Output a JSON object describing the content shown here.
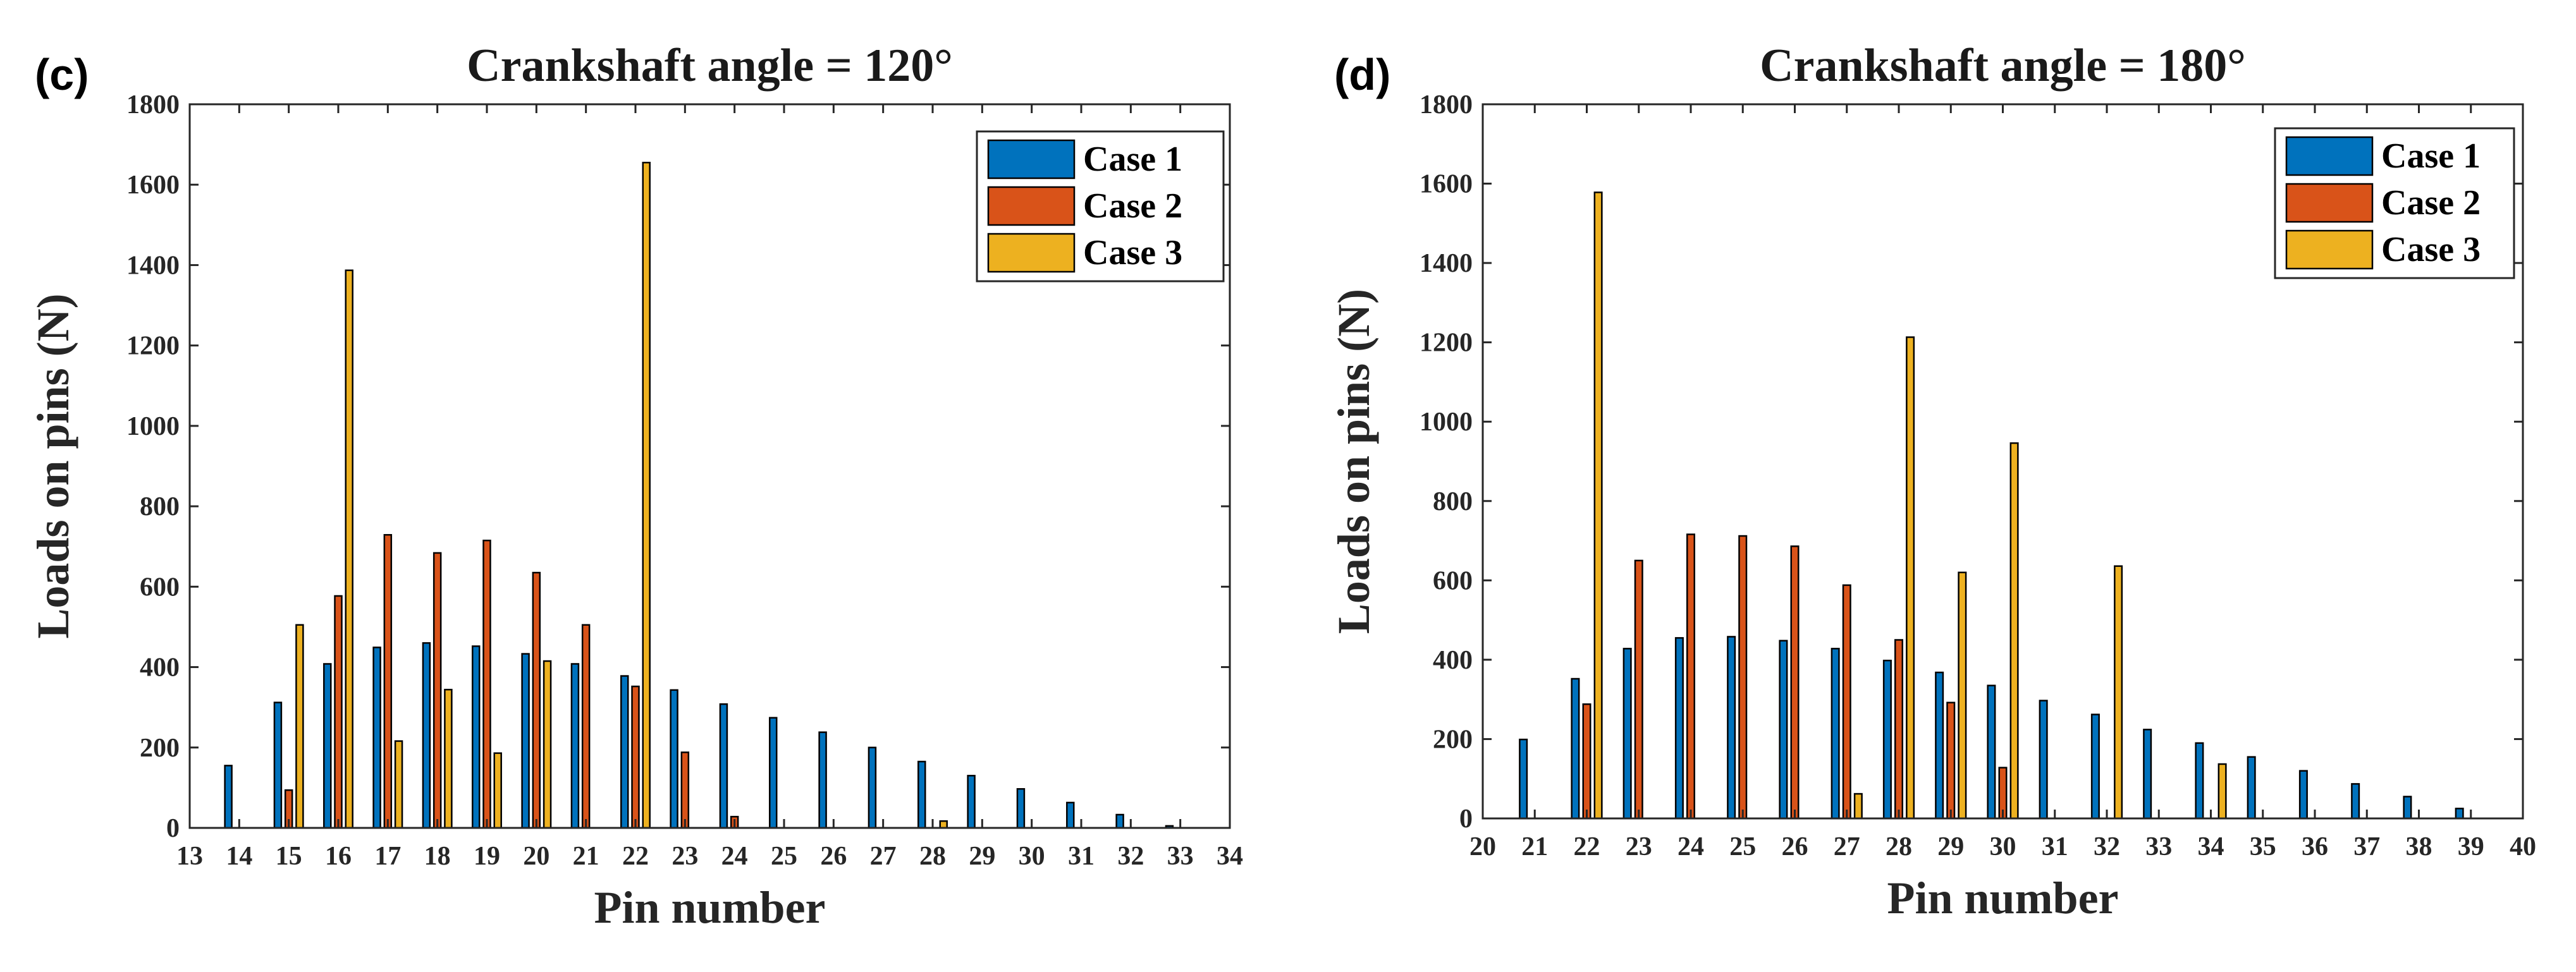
{
  "figure": {
    "panels": [
      {
        "label": "(c)"
      },
      {
        "label": "(d)"
      }
    ]
  },
  "chart_data": [
    {
      "type": "bar",
      "title": "Crankshaft angle = 120°",
      "xlabel": "Pin number",
      "ylabel": "Loads on pins (N)",
      "xlim": [
        13,
        34
      ],
      "ylim": [
        0,
        1800
      ],
      "xticks": [
        13,
        14,
        15,
        16,
        17,
        18,
        19,
        20,
        21,
        22,
        23,
        24,
        25,
        26,
        27,
        28,
        29,
        30,
        31,
        32,
        33,
        34
      ],
      "yticks": [
        0,
        200,
        400,
        600,
        800,
        1000,
        1200,
        1400,
        1600,
        1800
      ],
      "legend_position": "top-right",
      "categories": [
        14,
        15,
        16,
        17,
        18,
        19,
        20,
        21,
        22,
        23,
        24,
        25,
        26,
        27,
        28,
        29,
        30,
        31,
        32,
        33
      ],
      "series": [
        {
          "name": "Case 1",
          "color": "#0072BD",
          "values": [
            155,
            312,
            408,
            449,
            460,
            452,
            433,
            408,
            378,
            343,
            308,
            274,
            238,
            200,
            165,
            130,
            97,
            63,
            33,
            5
          ]
        },
        {
          "name": "Case 2",
          "color": "#D95319",
          "values": [
            0,
            94,
            577,
            729,
            684,
            715,
            635,
            505,
            352,
            188,
            28,
            0,
            0,
            0,
            0,
            0,
            0,
            0,
            0,
            0
          ]
        },
        {
          "name": "Case 3",
          "color": "#EDB120",
          "values": [
            0,
            505,
            1387,
            216,
            344,
            186,
            415,
            0,
            1655,
            0,
            0,
            0,
            0,
            0,
            17,
            0,
            0,
            0,
            0,
            0
          ]
        }
      ]
    },
    {
      "type": "bar",
      "title": "Crankshaft angle = 180°",
      "xlabel": "Pin number",
      "ylabel": "Loads on pins (N)",
      "xlim": [
        20,
        40
      ],
      "ylim": [
        0,
        1800
      ],
      "xticks": [
        20,
        21,
        22,
        23,
        24,
        25,
        26,
        27,
        28,
        29,
        30,
        31,
        32,
        33,
        34,
        35,
        36,
        37,
        38,
        39,
        40
      ],
      "yticks": [
        0,
        200,
        400,
        600,
        800,
        1000,
        1200,
        1400,
        1600,
        1800
      ],
      "legend_position": "top-right",
      "categories": [
        21,
        22,
        23,
        24,
        25,
        26,
        27,
        28,
        29,
        30,
        31,
        32,
        33,
        34,
        35,
        36,
        37,
        38,
        39
      ],
      "series": [
        {
          "name": "Case 1",
          "color": "#0072BD",
          "values": [
            199,
            352,
            428,
            455,
            458,
            448,
            428,
            398,
            368,
            335,
            297,
            262,
            224,
            190,
            155,
            120,
            87,
            55,
            25
          ]
        },
        {
          "name": "Case 2",
          "color": "#D95319",
          "values": [
            0,
            288,
            650,
            716,
            712,
            686,
            588,
            450,
            292,
            128,
            0,
            0,
            0,
            0,
            0,
            0,
            0,
            0,
            0
          ]
        },
        {
          "name": "Case 3",
          "color": "#EDB120",
          "values": [
            0,
            1578,
            0,
            0,
            0,
            0,
            62,
            1213,
            620,
            946,
            0,
            636,
            0,
            137,
            0,
            0,
            0,
            0,
            0
          ]
        }
      ]
    }
  ]
}
